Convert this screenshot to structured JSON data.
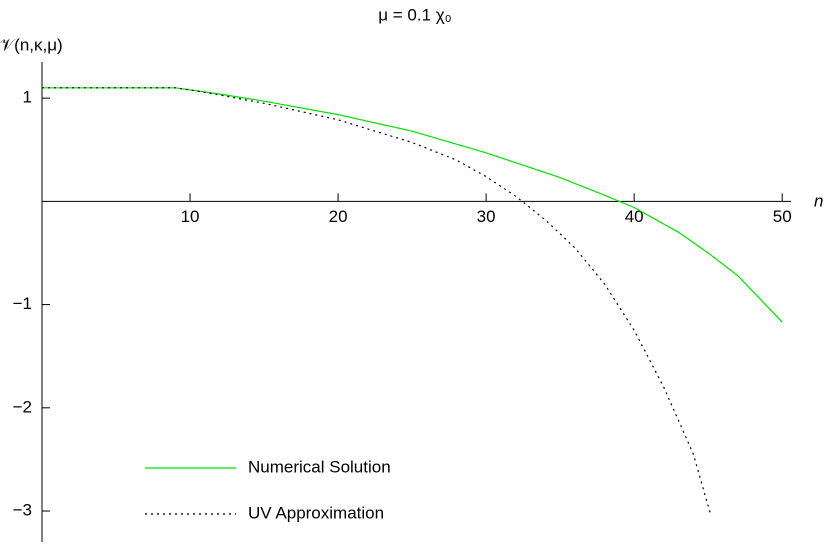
{
  "chart_data": {
    "type": "line",
    "title": "μ = 0.1 χ₀",
    "y_label": "𝒱(n,κ,μ)",
    "x_label": "n",
    "xlim": [
      0,
      51
    ],
    "ylim": [
      -3.3,
      1.35
    ],
    "xticks": [
      10,
      20,
      30,
      40,
      50
    ],
    "yticks": [
      {
        "value": -3,
        "label": "−3"
      },
      {
        "value": -2,
        "label": "−2"
      },
      {
        "value": -1,
        "label": "−1"
      },
      1
    ],
    "legend": "lower left",
    "series": [
      {
        "name": "Numerical Solution",
        "color": "#00e000",
        "style": "solid",
        "x": [
          0,
          5,
          9,
          10,
          12,
          15,
          20,
          25,
          30,
          35,
          38,
          40,
          43,
          45,
          47,
          50
        ],
        "values": [
          1.1,
          1.1,
          1.1,
          1.08,
          1.04,
          0.97,
          0.84,
          0.68,
          0.47,
          0.23,
          0.06,
          -0.06,
          -0.3,
          -0.5,
          -0.72,
          -1.17
        ]
      },
      {
        "name": "UV Approximation",
        "color": "#000000",
        "style": "dotted",
        "x": [
          0,
          5,
          9,
          10,
          12,
          15,
          20,
          25,
          28,
          30,
          32,
          34,
          36,
          38,
          40,
          42,
          44,
          45.2
        ],
        "values": [
          1.1,
          1.1,
          1.1,
          1.08,
          1.03,
          0.95,
          0.79,
          0.57,
          0.4,
          0.24,
          0.05,
          -0.18,
          -0.45,
          -0.8,
          -1.25,
          -1.8,
          -2.45,
          -3.05
        ]
      }
    ]
  }
}
